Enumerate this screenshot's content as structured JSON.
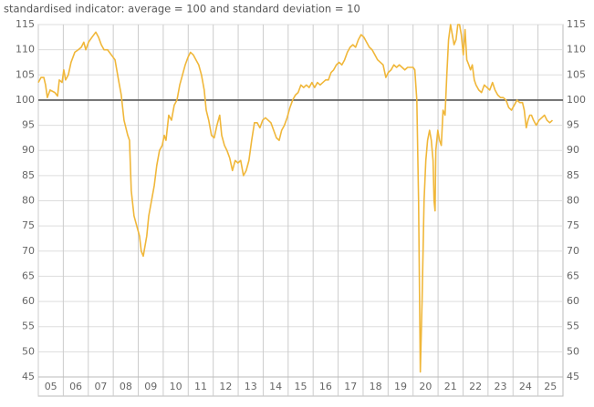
{
  "chart_data": {
    "type": "line",
    "title": "standardised indicator: average = 100 and standard deviation = 10",
    "color": "#f0b73a",
    "x": [
      5.0,
      5.11,
      5.22,
      5.29,
      5.36,
      5.47,
      5.66,
      5.77,
      5.84,
      5.95,
      6.02,
      6.09,
      6.2,
      6.31,
      6.46,
      6.6,
      6.72,
      6.82,
      6.9,
      7.01,
      7.15,
      7.3,
      7.41,
      7.52,
      7.63,
      7.77,
      7.92,
      8.07,
      8.21,
      8.32,
      8.43,
      8.58,
      8.65,
      8.72,
      8.83,
      8.94,
      9.05,
      9.12,
      9.2,
      9.27,
      9.34,
      9.42,
      9.53,
      9.64,
      9.74,
      9.85,
      9.96,
      10.04,
      10.11,
      10.22,
      10.33,
      10.44,
      10.55,
      10.66,
      10.77,
      10.88,
      10.99,
      11.09,
      11.2,
      11.31,
      11.42,
      11.53,
      11.64,
      11.72,
      11.82,
      11.93,
      12.04,
      12.15,
      12.26,
      12.34,
      12.45,
      12.55,
      12.66,
      12.77,
      12.88,
      12.99,
      13.1,
      13.21,
      13.32,
      13.43,
      13.54,
      13.65,
      13.76,
      13.87,
      13.98,
      14.09,
      14.2,
      14.31,
      14.42,
      14.53,
      14.64,
      14.74,
      14.85,
      14.96,
      15.07,
      15.18,
      15.29,
      15.4,
      15.51,
      15.62,
      15.73,
      15.84,
      15.95,
      16.06,
      16.17,
      16.28,
      16.39,
      16.5,
      16.61,
      16.72,
      16.82,
      16.93,
      17.04,
      17.15,
      17.26,
      17.37,
      17.48,
      17.59,
      17.7,
      17.81,
      17.92,
      18.03,
      18.14,
      18.25,
      18.36,
      18.47,
      18.58,
      18.69,
      18.8,
      18.91,
      19.01,
      19.12,
      19.23,
      19.34,
      19.45,
      19.56,
      19.67,
      19.78,
      19.89,
      20.0,
      20.07,
      20.15,
      20.22,
      20.29,
      20.36,
      20.44,
      20.51,
      20.58,
      20.66,
      20.73,
      20.8,
      20.84,
      20.88,
      20.91,
      20.99,
      21.06,
      21.13,
      21.2,
      21.28,
      21.35,
      21.42,
      21.5,
      21.57,
      21.64,
      21.72,
      21.79,
      21.86,
      21.93,
      22.01,
      22.08,
      22.15,
      22.23,
      22.3,
      22.37,
      22.45,
      22.52,
      22.63,
      22.74,
      22.85,
      22.96,
      23.07,
      23.18,
      23.28,
      23.39,
      23.5,
      23.61,
      23.72,
      23.83,
      23.94,
      24.05,
      24.16,
      24.27,
      24.38,
      24.45,
      24.53,
      24.6,
      24.67,
      24.74,
      24.82,
      24.93,
      25.04,
      25.15,
      25.26,
      25.36,
      25.47,
      25.58
    ],
    "values": [
      103.5,
      104.5,
      104.5,
      103,
      100.5,
      102,
      101.5,
      100.8,
      104,
      103.5,
      106,
      104,
      105,
      107.5,
      109.5,
      110,
      110.5,
      111.5,
      110,
      111.5,
      112.5,
      113.5,
      112.5,
      111,
      110,
      110,
      109,
      108,
      104,
      101,
      96,
      93,
      92,
      82,
      77,
      75,
      73,
      70,
      69,
      71,
      73,
      77,
      80,
      83,
      87,
      90,
      91,
      93,
      92,
      97,
      96,
      99,
      100,
      103,
      105,
      107,
      108.5,
      109.5,
      109,
      108,
      107,
      105,
      102,
      98,
      96,
      93,
      92.5,
      95,
      97,
      93,
      91,
      90,
      88.5,
      86,
      88,
      87.5,
      88,
      85,
      86,
      88,
      92,
      95.5,
      95.5,
      94.5,
      96,
      96.5,
      96,
      95.5,
      94,
      92.5,
      92,
      94,
      95,
      96.5,
      98.5,
      100,
      101,
      101.5,
      103,
      102.5,
      103,
      102.5,
      103.5,
      102.5,
      103.5,
      103,
      103.5,
      104,
      104,
      105.5,
      106,
      107,
      107.5,
      107,
      108,
      109.5,
      110.5,
      111,
      110.5,
      112,
      113,
      112.5,
      111.5,
      110.5,
      110,
      109,
      108,
      107.5,
      107,
      104.5,
      105.5,
      106,
      107,
      106.5,
      107,
      106.5,
      106,
      106.5,
      106.5,
      106.5,
      106,
      100,
      80,
      46,
      60,
      80,
      88,
      92,
      94,
      92,
      88,
      80,
      78,
      90,
      94,
      92,
      91,
      98,
      97,
      105,
      112,
      115,
      113,
      111,
      112,
      115,
      115,
      113,
      109,
      114,
      108,
      107,
      106,
      107,
      104,
      103,
      102,
      101.5,
      103,
      102.5,
      102,
      103.5,
      102,
      101,
      100.5,
      100.5,
      100,
      98.5,
      98,
      99,
      100,
      99.5,
      99.5,
      98,
      94.5,
      96,
      97,
      97,
      96,
      95,
      96,
      96.5,
      97,
      96,
      95.5,
      96
    ],
    "xlim": [
      5,
      26
    ],
    "xticks": [
      {
        "value": 5,
        "label": "05"
      },
      {
        "value": 6,
        "label": "06"
      },
      {
        "value": 7,
        "label": "07"
      },
      {
        "value": 8,
        "label": "08"
      },
      {
        "value": 9,
        "label": "09"
      },
      {
        "value": 10,
        "label": "10"
      },
      {
        "value": 11,
        "label": "11"
      },
      {
        "value": 12,
        "label": "12"
      },
      {
        "value": 13,
        "label": "13"
      },
      {
        "value": 14,
        "label": "14"
      },
      {
        "value": 15,
        "label": "15"
      },
      {
        "value": 16,
        "label": "16"
      },
      {
        "value": 17,
        "label": "17"
      },
      {
        "value": 18,
        "label": "18"
      },
      {
        "value": 19,
        "label": "19"
      },
      {
        "value": 20,
        "label": "20"
      },
      {
        "value": 21,
        "label": "21"
      },
      {
        "value": 22,
        "label": "22"
      },
      {
        "value": 23,
        "label": "23"
      },
      {
        "value": 24,
        "label": "24"
      },
      {
        "value": 25,
        "label": "25"
      }
    ],
    "ylim": [
      45,
      115
    ],
    "yticks": [
      45,
      50,
      55,
      60,
      65,
      70,
      75,
      80,
      85,
      90,
      95,
      100,
      105,
      110,
      115
    ],
    "reference_line": 100,
    "grid": true
  }
}
